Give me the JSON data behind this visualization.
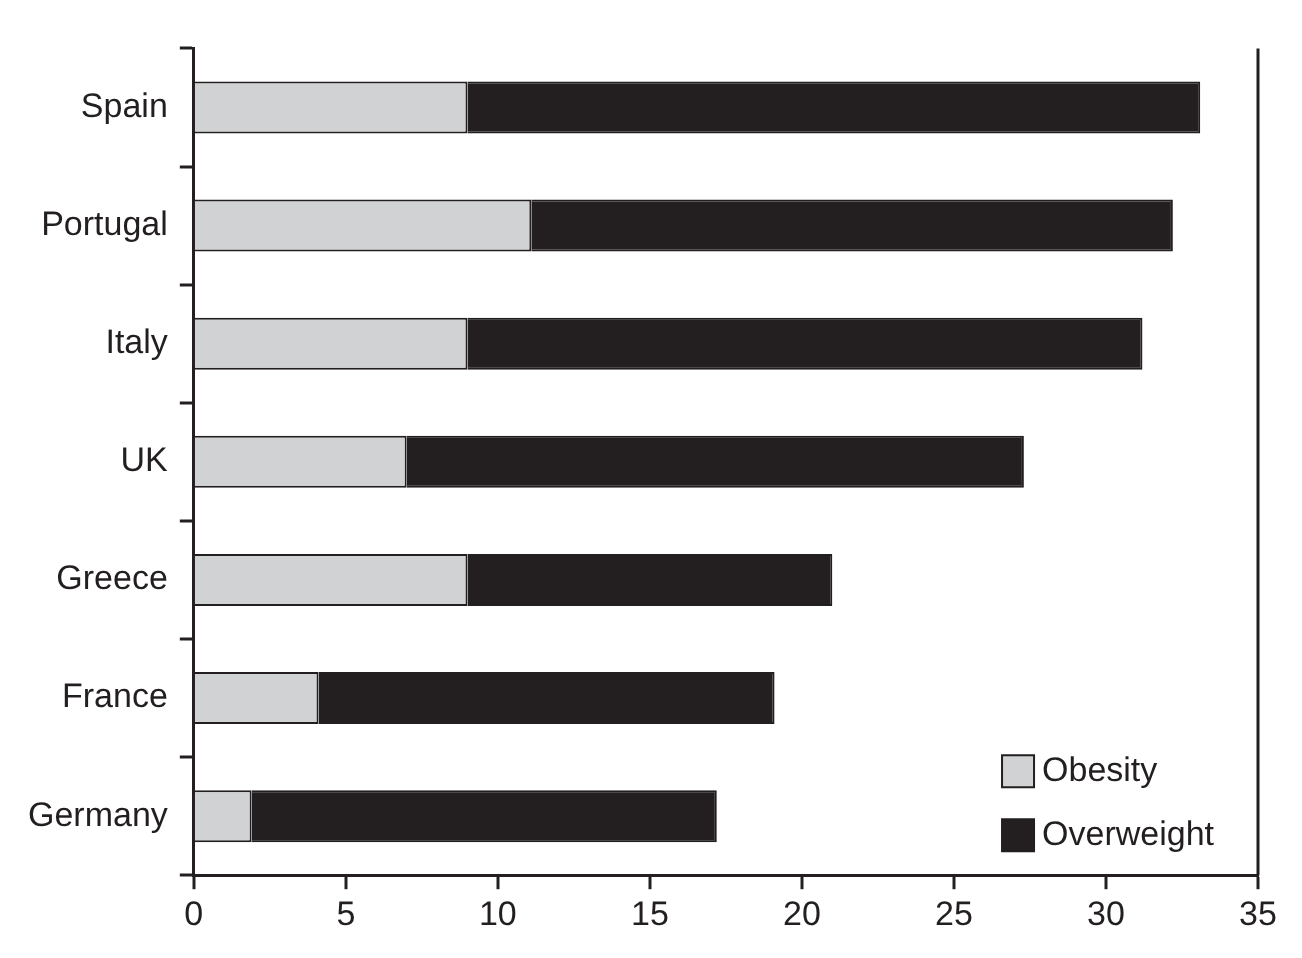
{
  "chart_data": {
    "type": "bar",
    "orientation": "horizontal",
    "stacked": true,
    "categories": [
      "Spain",
      "Portugal",
      "Italy",
      "UK",
      "Greece",
      "France",
      "Germany"
    ],
    "series": [
      {
        "name": "Obesity",
        "color": "#d1d2d4",
        "values": [
          9,
          11.1,
          9,
          7,
          9,
          4.1,
          1.9
        ]
      },
      {
        "name": "Overweight",
        "color": "#231f20",
        "values": [
          24.1,
          21.1,
          22.2,
          20.3,
          12,
          15,
          15.3
        ]
      }
    ],
    "xlim": [
      0,
      35
    ],
    "xticks": [
      0,
      5,
      10,
      15,
      20,
      25,
      30,
      35
    ],
    "grid": false,
    "legend": "bottom right"
  }
}
